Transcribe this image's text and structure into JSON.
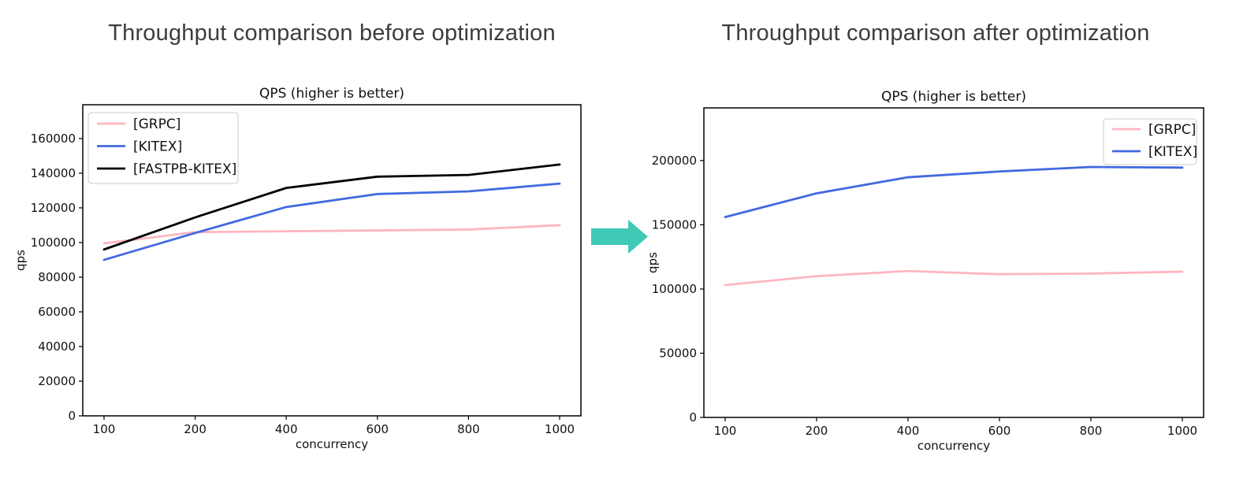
{
  "panels": [
    {
      "title": "Throughput comparison before optimization"
    },
    {
      "title": "Throughput comparison after optimization"
    }
  ],
  "arrow": {
    "direction": "right",
    "color": "#3fc9b6"
  },
  "chart_data": [
    {
      "type": "line",
      "title": "QPS (higher is better)",
      "xlabel": "concurrency",
      "ylabel": "qps",
      "categories": [
        "100",
        "200",
        "400",
        "600",
        "800",
        "1000"
      ],
      "series": [
        {
          "name": "[GRPC]",
          "color": "#ffb6c1",
          "values": [
            99500,
            106000,
            106500,
            107000,
            107500,
            110000
          ]
        },
        {
          "name": "[KITEX]",
          "color": "#4169e1",
          "values": [
            90000,
            105500,
            120500,
            128000,
            129500,
            134000
          ]
        },
        {
          "name": "[FASTPB-KITEX]",
          "color": "#000000",
          "values": [
            96000,
            114500,
            131500,
            138000,
            139000,
            145000
          ]
        }
      ],
      "ylim": [
        0,
        179500
      ],
      "yticks": [
        0,
        20000,
        40000,
        60000,
        80000,
        100000,
        120000,
        140000,
        160000
      ],
      "legend_position": "upper-left",
      "grid": false
    },
    {
      "type": "line",
      "title": "QPS (higher is better)",
      "xlabel": "concurrency",
      "ylabel": "qps",
      "categories": [
        "100",
        "200",
        "400",
        "600",
        "800",
        "1000"
      ],
      "series": [
        {
          "name": "[GRPC]",
          "color": "#ffb6c1",
          "values": [
            103000,
            110000,
            114000,
            111500,
            112000,
            113500
          ]
        },
        {
          "name": "[KITEX]",
          "color": "#4169e1",
          "values": [
            156000,
            174500,
            187000,
            191500,
            195000,
            194500
          ]
        }
      ],
      "ylim": [
        0,
        241000
      ],
      "yticks": [
        0,
        50000,
        100000,
        150000,
        200000
      ],
      "legend_position": "upper-right",
      "grid": false
    }
  ]
}
